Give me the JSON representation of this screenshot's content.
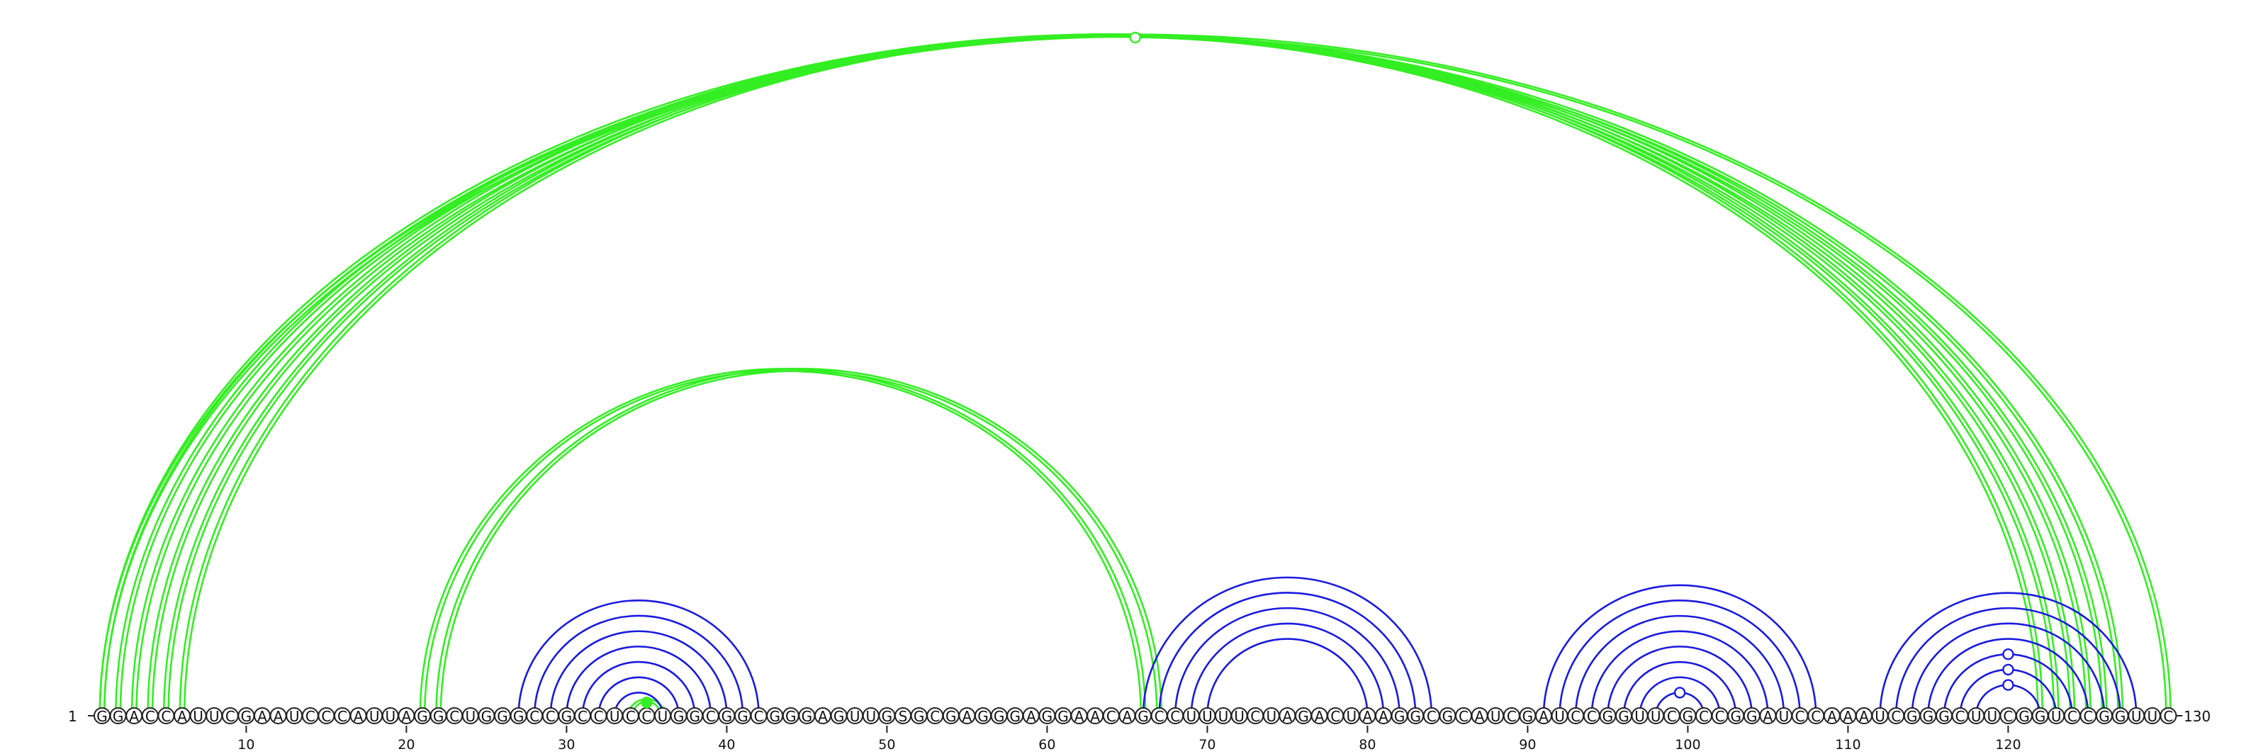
{
  "sequence": "GGACCAUUCGAAUCCCAUUAGGCUGGGCCGCCUCCUGGCGGCGGGAGUUGSGCGAGGGAGGAACAGCCUUUUCUAGACUAAGGCGCAUCGAUCCGGUUCGCCGGAUCCAAAUCGGGCUUCGGUCCGGUUC",
  "start_label": "1",
  "end_label": "130",
  "ticks": [
    "10",
    "20",
    "30",
    "40",
    "50",
    "60",
    "70",
    "80",
    "90",
    "100",
    "110",
    "120"
  ],
  "colors": {
    "green_arcs": "#33ee22",
    "blue_arcs": "#1a1adf",
    "backbone": "#222222"
  },
  "helices": [
    {
      "color": "green",
      "style": "double",
      "pairs": [
        [
          1,
          127
        ],
        [
          2,
          126
        ],
        [
          3,
          125
        ],
        [
          4,
          124
        ],
        [
          5,
          123
        ],
        [
          6,
          122
        ]
      ]
    },
    {
      "color": "green",
      "style": "double",
      "pairs": [
        [
          21,
          66
        ],
        [
          22,
          67
        ]
      ]
    },
    {
      "color": "green",
      "style": "double",
      "pairs": [
        [
          34,
          36
        ]
      ]
    },
    {
      "color": "green",
      "style": "double",
      "pairs": [
        [
          1,
          130
        ]
      ]
    },
    {
      "color": "blue",
      "style": "single",
      "pairs": [
        [
          27,
          42
        ],
        [
          28,
          41
        ],
        [
          29,
          40
        ],
        [
          30,
          39
        ],
        [
          31,
          38
        ],
        [
          32,
          37
        ],
        [
          33,
          36
        ]
      ]
    },
    {
      "color": "blue",
      "style": "single",
      "pairs": [
        [
          66,
          84
        ],
        [
          67,
          83
        ],
        [
          68,
          82
        ],
        [
          69,
          81
        ],
        [
          70,
          80
        ]
      ]
    },
    {
      "color": "blue",
      "style": "single",
      "pairs": [
        [
          91,
          108
        ],
        [
          92,
          107
        ],
        [
          93,
          106
        ],
        [
          94,
          105
        ],
        [
          95,
          104
        ],
        [
          96,
          103
        ],
        [
          97,
          102
        ],
        [
          98,
          101
        ]
      ]
    },
    {
      "color": "blue",
      "style": "single",
      "pairs": [
        [
          112,
          128
        ],
        [
          113,
          127
        ],
        [
          114,
          126
        ],
        [
          115,
          125
        ],
        [
          116,
          124
        ],
        [
          117,
          123
        ],
        [
          118,
          122
        ]
      ]
    }
  ],
  "markers": [
    {
      "color": "green",
      "filled": false,
      "i": 1,
      "j": 130,
      "double": true
    },
    {
      "color": "green",
      "filled": true,
      "i": 34,
      "j": 36,
      "double": true
    },
    {
      "color": "blue",
      "filled": false,
      "i": 98,
      "j": 101,
      "double": false
    },
    {
      "color": "blue",
      "filled": false,
      "i": 116,
      "j": 124,
      "double": false
    },
    {
      "color": "blue",
      "filled": false,
      "i": 117,
      "j": 123,
      "double": false
    },
    {
      "color": "blue",
      "filled": false,
      "i": 118,
      "j": 122,
      "double": false
    }
  ]
}
